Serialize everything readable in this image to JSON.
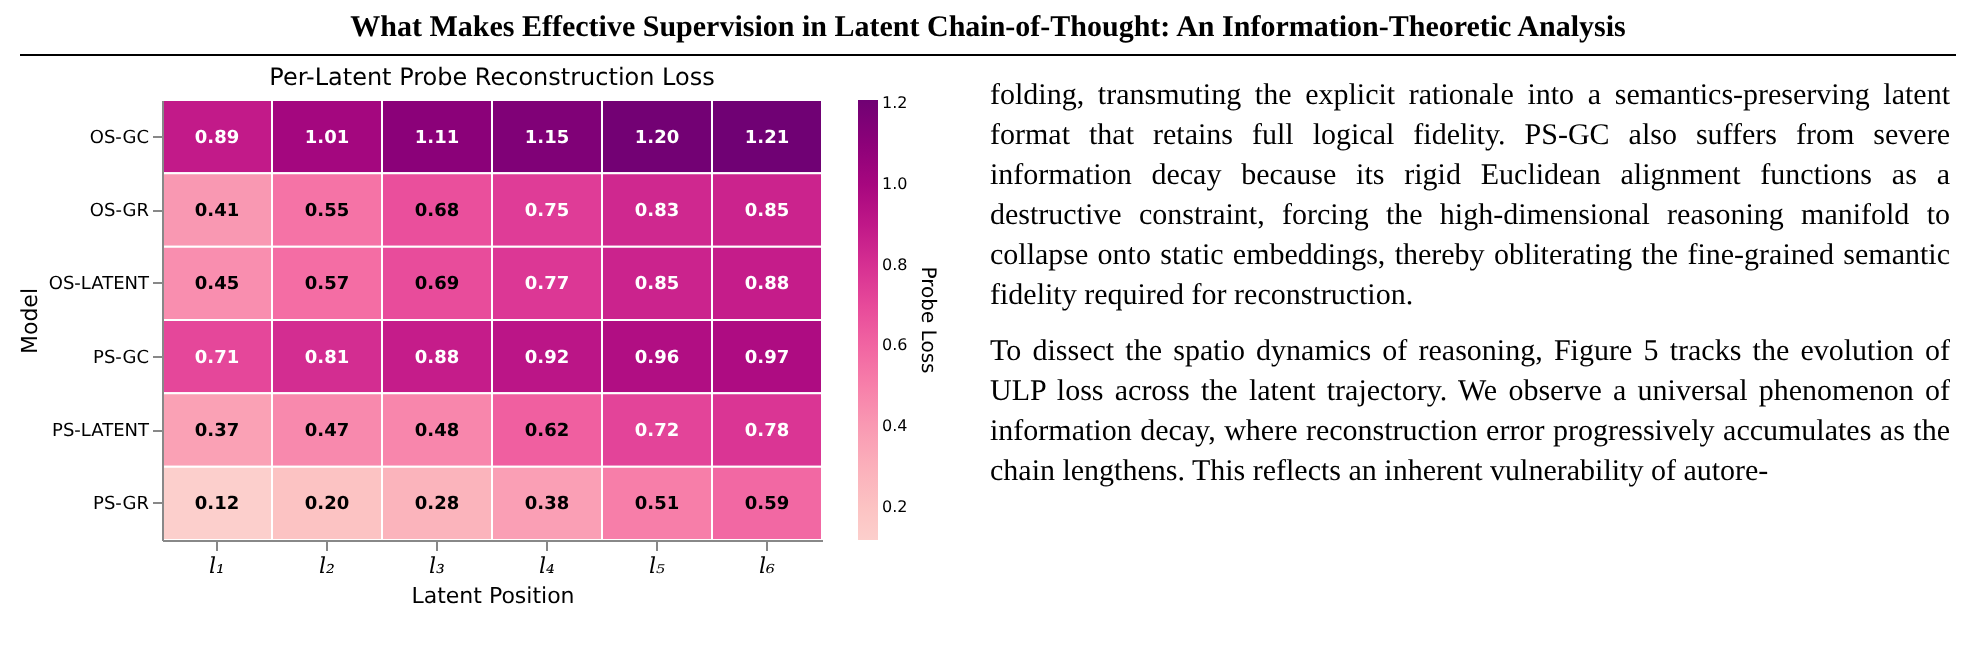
{
  "chart_data": {
    "type": "heatmap",
    "title": "Per-Latent Probe Reconstruction Loss",
    "xlabel": "Latent Position",
    "ylabel": "Model",
    "clabel": "Probe Loss",
    "categories": [
      "l₁",
      "l₂",
      "l₃",
      "l₄",
      "l₅",
      "l₆"
    ],
    "y_categories": [
      "OS-GC",
      "OS-GR",
      "OS-LATENT",
      "PS-GC",
      "PS-LATENT",
      "PS-GR"
    ],
    "cells": [
      [
        0.89,
        1.01,
        1.11,
        1.15,
        1.2,
        1.21
      ],
      [
        0.41,
        0.55,
        0.68,
        0.75,
        0.83,
        0.85
      ],
      [
        0.45,
        0.57,
        0.69,
        0.77,
        0.85,
        0.88
      ],
      [
        0.71,
        0.81,
        0.88,
        0.92,
        0.96,
        0.97
      ],
      [
        0.37,
        0.47,
        0.48,
        0.62,
        0.72,
        0.78
      ],
      [
        0.12,
        0.2,
        0.28,
        0.38,
        0.51,
        0.59
      ]
    ],
    "cell_labels": [
      [
        "0.89",
        "1.01",
        "1.11",
        "1.15",
        "1.20",
        "1.21"
      ],
      [
        "0.41",
        "0.55",
        "0.68",
        "0.75",
        "0.83",
        "0.85"
      ],
      [
        "0.45",
        "0.57",
        "0.69",
        "0.77",
        "0.85",
        "0.88"
      ],
      [
        "0.71",
        "0.81",
        "0.88",
        "0.92",
        "0.96",
        "0.97"
      ],
      [
        "0.37",
        "0.47",
        "0.48",
        "0.62",
        "0.72",
        "0.78"
      ],
      [
        "0.12",
        "0.20",
        "0.28",
        "0.38",
        "0.51",
        "0.59"
      ]
    ],
    "clim": [
      0.12,
      1.21
    ],
    "cticks": [
      0.2,
      0.4,
      0.6,
      0.8,
      {
        "value": 1,
        "label": "1.0"
      },
      1.2
    ],
    "data_labels": true,
    "annotations": [
      "What Makes Effective Supervision in Latent Chain-of-Thought: An Information-Theoretic Analysis",
      "folding, transmuting the explicit rationale into a semantics-preserving latent format that retains full logical fidelity. PS-GC also suffers from severe information decay because its rigid Euclidean alignment functions as a destructive constraint, forcing the high-dimensional reasoning manifold to collapse onto static embeddings, thereby obliterating the fine-grained semantic fidelity required for reconstruction.",
      "To dissect the spatio dynamics of reasoning, Figure 5 tracks the evolution of ULP loss across the latent trajectory. We observe a universal phenomenon of information decay, where reconstruction error progressively accumulates as the chain lengthens. This reflects an inherent vulnerability of autore-"
    ]
  }
}
